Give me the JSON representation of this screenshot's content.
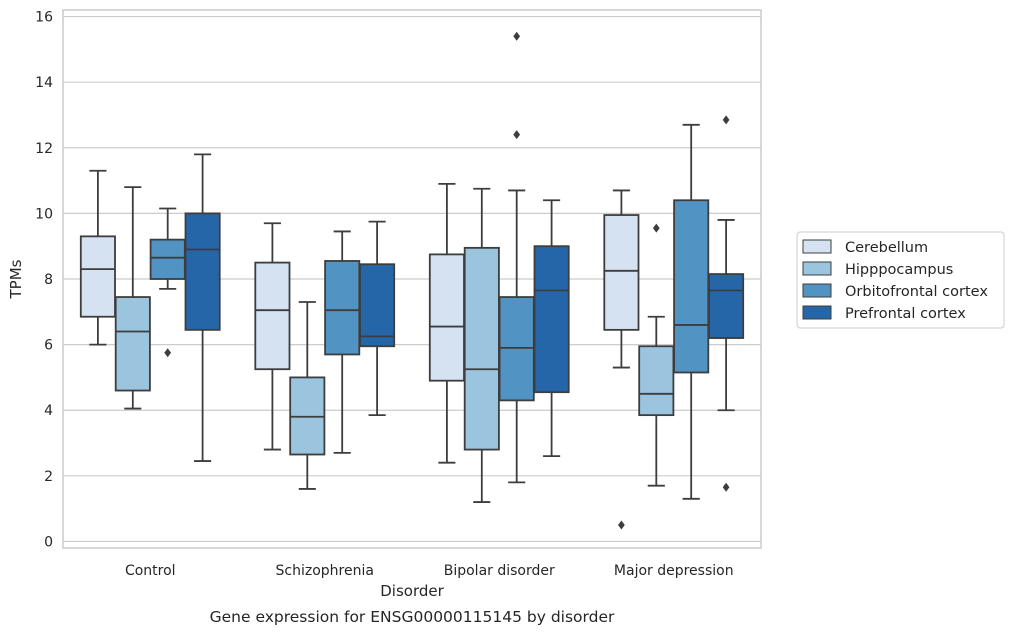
{
  "chart_data": {
    "type": "boxplot",
    "title": "",
    "caption": "Gene expression for ENSG00000115145 by disorder",
    "xlabel": "Disorder",
    "ylabel": "TPMs",
    "ylim": [
      -0.2,
      16.2
    ],
    "yticks": [
      0,
      2,
      4,
      6,
      8,
      10,
      12,
      14,
      16
    ],
    "grid": "horizontal",
    "legend_position": "right",
    "categories": [
      "Control",
      "Schizophrenia",
      "Bipolar disorder",
      "Major depression"
    ],
    "series": [
      {
        "name": "Cerebellum",
        "color": "#d4e2f2",
        "boxes": [
          {
            "whislo": 6.0,
            "q1": 6.85,
            "med": 8.3,
            "q3": 9.3,
            "whishi": 11.3,
            "fliers": []
          },
          {
            "whislo": 2.8,
            "q1": 5.25,
            "med": 7.05,
            "q3": 8.5,
            "whishi": 9.7,
            "fliers": []
          },
          {
            "whislo": 2.4,
            "q1": 4.9,
            "med": 6.55,
            "q3": 8.75,
            "whishi": 10.9,
            "fliers": []
          },
          {
            "whislo": 5.3,
            "q1": 6.45,
            "med": 8.25,
            "q3": 9.95,
            "whishi": 10.7,
            "fliers": [
              0.5
            ]
          }
        ]
      },
      {
        "name": "Hipppocampus",
        "color": "#9bc4de",
        "boxes": [
          {
            "whislo": 4.05,
            "q1": 4.6,
            "med": 6.4,
            "q3": 7.45,
            "whishi": 10.8,
            "fliers": []
          },
          {
            "whislo": 1.6,
            "q1": 2.65,
            "med": 3.8,
            "q3": 5.0,
            "whishi": 7.3,
            "fliers": []
          },
          {
            "whislo": 1.2,
            "q1": 2.8,
            "med": 5.25,
            "q3": 8.95,
            "whishi": 10.75,
            "fliers": []
          },
          {
            "whislo": 1.7,
            "q1": 3.85,
            "med": 4.5,
            "q3": 5.95,
            "whishi": 6.85,
            "fliers": [
              9.55
            ]
          }
        ]
      },
      {
        "name": "Orbitofrontal cortex",
        "color": "#5194c3",
        "boxes": [
          {
            "whislo": 7.7,
            "q1": 8.0,
            "med": 8.65,
            "q3": 9.2,
            "whishi": 10.15,
            "fliers": [
              5.75
            ]
          },
          {
            "whislo": 2.7,
            "q1": 5.7,
            "med": 7.05,
            "q3": 8.55,
            "whishi": 9.45,
            "fliers": []
          },
          {
            "whislo": 1.8,
            "q1": 4.3,
            "med": 5.9,
            "q3": 7.45,
            "whishi": 10.7,
            "fliers": [
              12.4,
              15.4
            ]
          },
          {
            "whislo": 1.3,
            "q1": 5.15,
            "med": 6.6,
            "q3": 10.4,
            "whishi": 12.7,
            "fliers": []
          }
        ]
      },
      {
        "name": "Prefrontal cortex",
        "color": "#2566a9",
        "boxes": [
          {
            "whislo": 2.45,
            "q1": 6.45,
            "med": 8.9,
            "q3": 10.0,
            "whishi": 11.8,
            "fliers": []
          },
          {
            "whislo": 3.85,
            "q1": 5.95,
            "med": 6.25,
            "q3": 8.45,
            "whishi": 9.75,
            "fliers": []
          },
          {
            "whislo": 2.6,
            "q1": 4.55,
            "med": 7.65,
            "q3": 9.0,
            "whishi": 10.4,
            "fliers": []
          },
          {
            "whislo": 4.0,
            "q1": 6.2,
            "med": 7.65,
            "q3": 8.15,
            "whishi": 9.8,
            "fliers": [
              1.65,
              12.85
            ]
          }
        ]
      }
    ]
  }
}
